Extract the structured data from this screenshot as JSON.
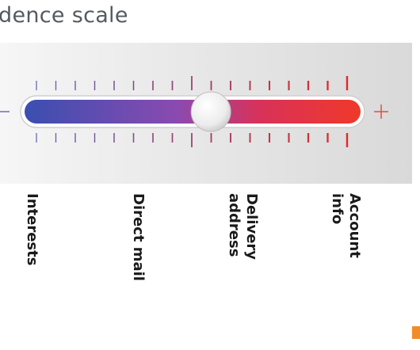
{
  "title": "dence scale",
  "scale": {
    "minus_symbol": "–",
    "plus_symbol": "+",
    "tick_count": 17,
    "slider_level": 0.48,
    "gradient_start_color": "#3a4fb0",
    "gradient_end_color": "#f0382a",
    "tick_start_color": "#5a5fb5",
    "tick_end_color": "#e02a2a"
  },
  "labels": {
    "interests": "Interests",
    "direct_mail": "Direct mail",
    "delivery_address": "Delivery\naddress",
    "account_info": "Account\ninfo"
  },
  "accent": {
    "corner_color": "#f28c28"
  }
}
